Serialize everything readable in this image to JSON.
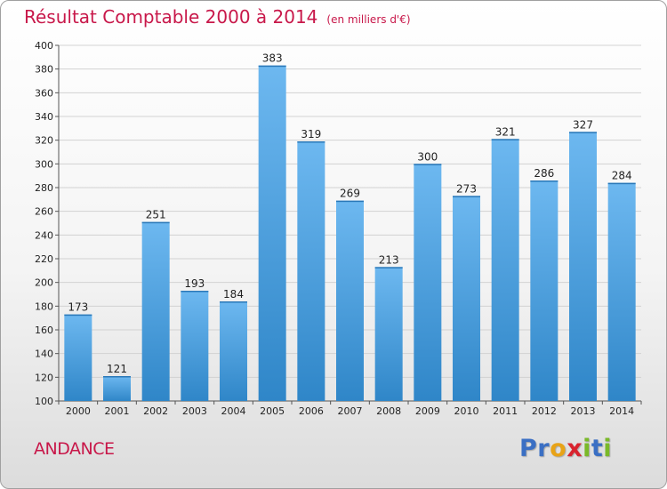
{
  "title": "Résultat Comptable 2000 à 2014",
  "subtitle": "(en milliers d'€)",
  "commune": "ANDANCE",
  "logo": {
    "text": "Proxiti",
    "letters": [
      {
        "ch": "P",
        "color": "#3a6fc4"
      },
      {
        "ch": "r",
        "color": "#3a6fc4"
      },
      {
        "ch": "o",
        "color": "#e8a317"
      },
      {
        "ch": "x",
        "color": "#d9232e"
      },
      {
        "ch": "i",
        "color": "#7ab929"
      },
      {
        "ch": "t",
        "color": "#3a6fc4"
      },
      {
        "ch": "i",
        "color": "#7ab929"
      }
    ]
  },
  "colors": {
    "bar_light": "#6db8f0",
    "bar_dark": "#2f86c8",
    "title": "#c8184a"
  },
  "chart_data": {
    "type": "bar",
    "title": "Résultat Comptable 2000 à 2014",
    "subtitle": "(en milliers d'€)",
    "categories": [
      "2000",
      "2001",
      "2002",
      "2003",
      "2004",
      "2005",
      "2006",
      "2007",
      "2008",
      "2009",
      "2010",
      "2011",
      "2012",
      "2013",
      "2014"
    ],
    "values": [
      173,
      121,
      251,
      193,
      184,
      383,
      319,
      269,
      213,
      300,
      273,
      321,
      286,
      327,
      284
    ],
    "ylim": [
      100,
      400
    ],
    "yticks": [
      100,
      120,
      140,
      160,
      180,
      200,
      220,
      240,
      260,
      280,
      300,
      320,
      340,
      360,
      380,
      400
    ],
    "grid": true,
    "xlabel": "",
    "ylabel": ""
  }
}
